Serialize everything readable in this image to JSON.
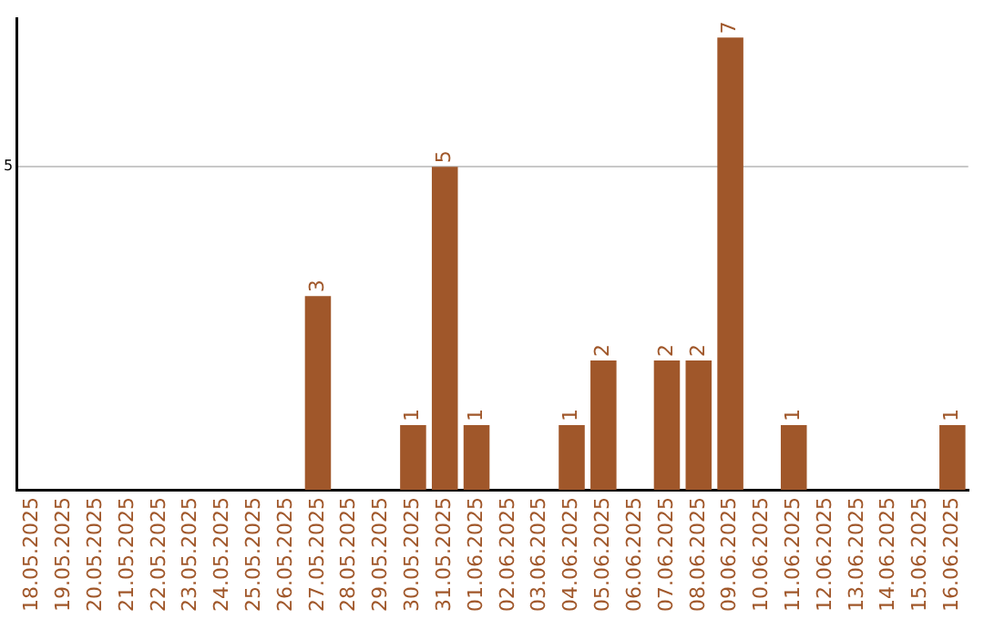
{
  "chart_data": {
    "type": "bar",
    "categories": [
      "18.05.2025",
      "19.05.2025",
      "20.05.2025",
      "21.05.2025",
      "22.05.2025",
      "23.05.2025",
      "24.05.2025",
      "25.05.2025",
      "26.05.2025",
      "27.05.2025",
      "28.05.2025",
      "29.05.2025",
      "30.05.2025",
      "31.05.2025",
      "01.06.2025",
      "02.06.2025",
      "03.06.2025",
      "04.06.2025",
      "05.06.2025",
      "06.06.2025",
      "07.06.2025",
      "08.06.2025",
      "09.06.2025",
      "10.06.2025",
      "11.06.2025",
      "12.06.2025",
      "13.06.2025",
      "14.06.2025",
      "15.06.2025",
      "16.06.2025"
    ],
    "values": [
      0,
      0,
      0,
      0,
      0,
      0,
      0,
      0,
      0,
      3,
      0,
      0,
      1,
      5,
      1,
      0,
      0,
      1,
      2,
      0,
      2,
      2,
      7,
      0,
      1,
      0,
      0,
      0,
      0,
      1
    ],
    "value_labels": [
      null,
      null,
      null,
      null,
      null,
      null,
      null,
      null,
      null,
      "3",
      null,
      null,
      "1",
      "5",
      "1",
      null,
      null,
      "1",
      "2",
      null,
      "2",
      "2",
      "7",
      null,
      "1",
      null,
      null,
      null,
      null,
      "1"
    ],
    "color": "#a0572a",
    "ylim": [
      0,
      7.3
    ],
    "yticks": [
      5
    ],
    "grid": "y",
    "legend": false
  }
}
